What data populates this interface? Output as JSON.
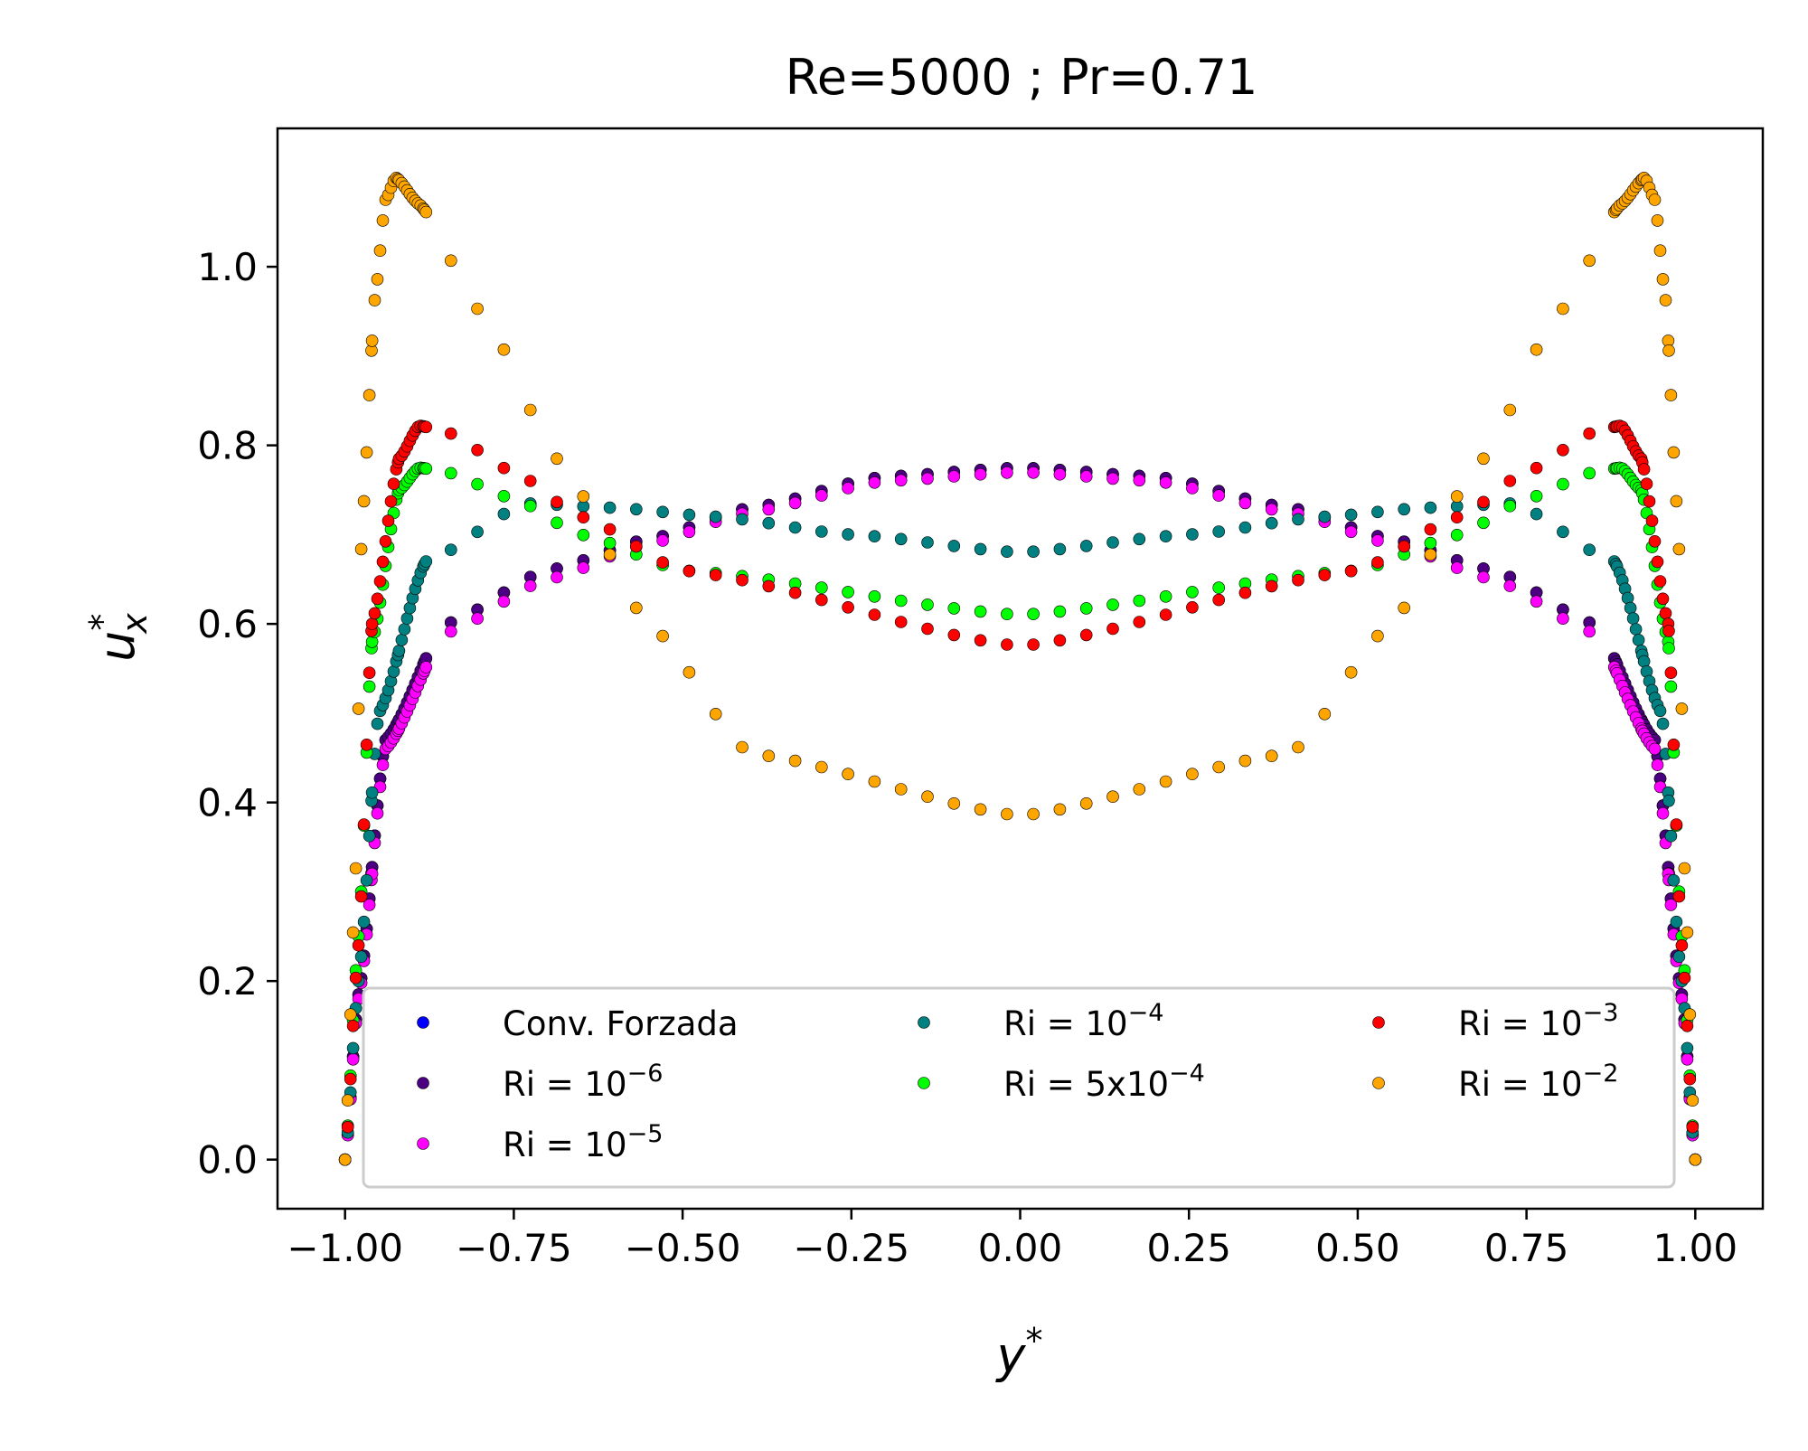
{
  "chart_data": {
    "type": "scatter",
    "title": "Re=5000 ; Pr=0.71",
    "xlabel": {
      "base": "y",
      "sup": "*"
    },
    "ylabel": {
      "base": "u",
      "sup": "*",
      "sub": "x"
    },
    "xlim": [
      -1.1,
      1.1
    ],
    "ylim": [
      -0.055,
      1.155
    ],
    "xticks": [
      -1.0,
      -0.75,
      -0.5,
      -0.25,
      0.0,
      0.25,
      0.5,
      0.75,
      1.0
    ],
    "xtick_labels": [
      "−1.00",
      "−0.75",
      "−0.50",
      "−0.25",
      "0.00",
      "0.25",
      "0.50",
      "0.75",
      "1.00"
    ],
    "yticks": [
      0.0,
      0.2,
      0.4,
      0.6,
      0.8,
      1.0
    ],
    "ytick_labels": [
      "0.0",
      "0.2",
      "0.4",
      "0.6",
      "0.8",
      "1.0"
    ],
    "grid": false,
    "legend": {
      "position": "lower-center",
      "columns": 3
    },
    "x_grid": {
      "start": -1.0,
      "end": 1.0,
      "n_uniform": 52,
      "n_wall_refined": 30,
      "wall_spacing": 0.004
    },
    "series": [
      {
        "name": "Conv. Forzada",
        "name_base": "Conv. Forzada",
        "color": "#0000ff",
        "profile": {
          "y": [
            0.0,
            0.185,
            0.47,
            0.6,
            0.66,
            0.695,
            0.73,
            0.765,
            0.775
          ],
          "at": [
            0.0,
            0.02,
            0.06,
            0.15,
            0.3,
            0.45,
            0.6,
            0.8,
            1.0
          ]
        }
      },
      {
        "name": "Ri = 10^-6",
        "name_base": "Ri = 10",
        "name_exp": "−6",
        "color": "#4b0082",
        "profile": {
          "y": [
            0.0,
            0.185,
            0.47,
            0.6,
            0.66,
            0.695,
            0.73,
            0.765,
            0.775
          ],
          "at": [
            0.0,
            0.02,
            0.06,
            0.15,
            0.3,
            0.45,
            0.6,
            0.8,
            1.0
          ]
        }
      },
      {
        "name": "Ri = 10^-5",
        "name_base": "Ri = 10",
        "name_exp": "−5",
        "color": "#ff00ff",
        "profile": {
          "y": [
            0.0,
            0.18,
            0.46,
            0.59,
            0.65,
            0.69,
            0.725,
            0.76,
            0.77
          ],
          "at": [
            0.0,
            0.02,
            0.06,
            0.15,
            0.3,
            0.45,
            0.6,
            0.8,
            1.0
          ]
        }
      },
      {
        "name": "Ri = 10^-4",
        "name_base": "Ri = 10",
        "name_exp": "−4",
        "color": "#008080",
        "profile": {
          "y": [
            0.0,
            0.2,
            0.5,
            0.67,
            0.735,
            0.73,
            0.72,
            0.7,
            0.68
          ],
          "at": [
            0.0,
            0.02,
            0.05,
            0.12,
            0.27,
            0.4,
            0.55,
            0.75,
            1.0
          ]
        }
      },
      {
        "name": "Ri = 5x10^-4",
        "name_base": "Ri = 5x10",
        "name_exp": "−4",
        "color": "#00ff00",
        "profile": {
          "y": [
            0.0,
            0.25,
            0.58,
            0.75,
            0.775,
            0.77,
            0.74,
            0.7,
            0.66,
            0.61
          ],
          "at": [
            0.0,
            0.02,
            0.04,
            0.08,
            0.11,
            0.15,
            0.25,
            0.35,
            0.5,
            1.0
          ]
        }
      },
      {
        "name": "Ri = 10^-3",
        "name_base": "Ri = 10",
        "name_exp": "−3",
        "color": "#ff0000",
        "profile": {
          "y": [
            0.0,
            0.24,
            0.6,
            0.785,
            0.822,
            0.815,
            0.77,
            0.72,
            0.66,
            0.575
          ],
          "at": [
            0.0,
            0.02,
            0.04,
            0.08,
            0.11,
            0.15,
            0.25,
            0.35,
            0.5,
            1.0
          ]
        }
      },
      {
        "name": "Ri = 10^-2",
        "name_base": "Ri = 10",
        "name_exp": "−2",
        "color": "#ffa500",
        "profile": {
          "y": [
            0.0,
            0.3,
            0.71,
            0.97,
            1.075,
            1.1,
            1.07,
            0.95,
            0.78,
            0.6,
            0.455,
            0.385
          ],
          "at": [
            0.0,
            0.015,
            0.025,
            0.045,
            0.06,
            0.075,
            0.11,
            0.2,
            0.32,
            0.45,
            0.6,
            1.0
          ]
        }
      }
    ]
  }
}
